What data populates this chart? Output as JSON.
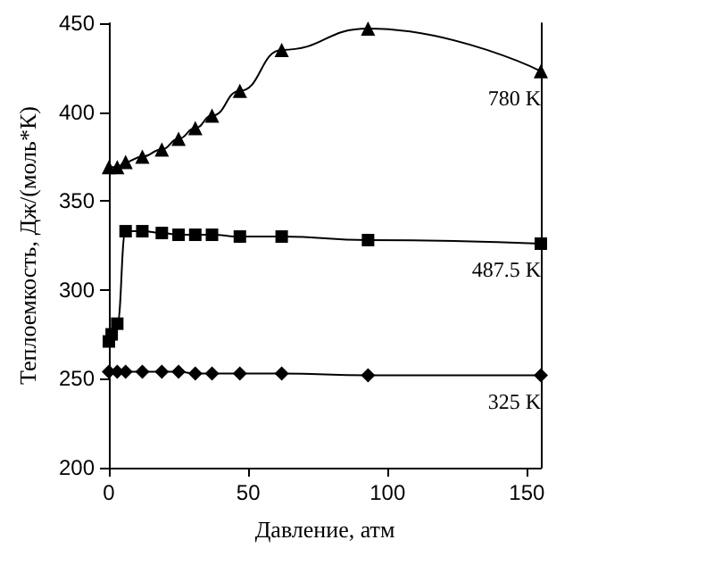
{
  "chart_data": {
    "type": "line",
    "xlabel": "Давление, атм",
    "ylabel": "Теплоемкость, Дж/(моль*К)",
    "xlim": [
      0,
      155
    ],
    "xticks": [
      0,
      50,
      100,
      150
    ],
    "ylim": [
      200,
      450
    ],
    "yticks": [
      200,
      250,
      300,
      350,
      400,
      450
    ],
    "grid": false,
    "legend": false,
    "series": [
      {
        "name": "780 K",
        "color": "#000000",
        "marker": "triangle",
        "x": [
          0,
          3,
          6,
          12,
          19,
          25,
          31,
          37,
          47,
          62,
          93,
          155
        ],
        "values": [
          369,
          369,
          372,
          375,
          379,
          385,
          391,
          398,
          412,
          435,
          447,
          423
        ]
      },
      {
        "name": "487.5 K",
        "color": "#000000",
        "marker": "square",
        "x": [
          0,
          1,
          3,
          6,
          12,
          19,
          25,
          31,
          37,
          47,
          62,
          93,
          155
        ],
        "values": [
          271,
          275,
          281,
          333,
          333,
          332,
          331,
          331,
          331,
          330,
          330,
          328,
          326
        ]
      },
      {
        "name": "325 K",
        "color": "#000000",
        "marker": "diamond",
        "x": [
          0,
          3,
          6,
          12,
          19,
          25,
          31,
          37,
          47,
          62,
          93,
          155
        ],
        "values": [
          254,
          254,
          254,
          254,
          254,
          254,
          253,
          253,
          253,
          253,
          252,
          252
        ]
      }
    ]
  }
}
